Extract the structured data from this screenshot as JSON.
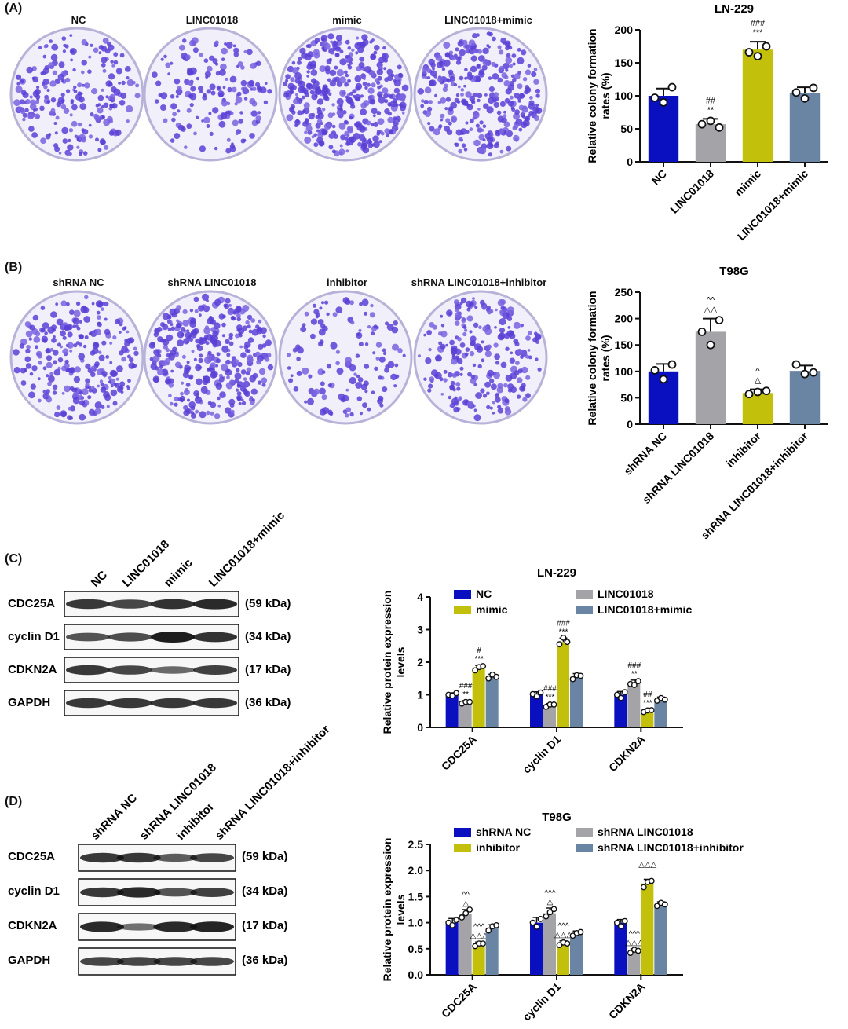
{
  "panels": {
    "A": {
      "label": "(A)",
      "dishes": [
        "NC",
        "LINC01018",
        "mimic",
        "LINC01018+mimic"
      ]
    },
    "B": {
      "label": "(B)",
      "dishes": [
        "shRNA NC",
        "shRNA LINC01018",
        "inhibitor",
        "shRNA LINC01018+inhibitor"
      ]
    },
    "C": {
      "label": "(C)",
      "lanes": [
        "NC",
        "LINC01018",
        "mimic",
        "LINC01018+mimic"
      ],
      "proteins": [
        "CDC25A",
        "cyclin D1",
        "CDKN2A",
        "GAPDH"
      ],
      "kda": [
        "(59 kDa)",
        "(34 kDa)",
        "(17 kDa)",
        "(36 kDa)"
      ]
    },
    "D": {
      "label": "(D)",
      "lanes": [
        "shRNA NC",
        "shRNA LINC01018",
        "inhibitor",
        "shRNA LINC01018+inhibitor"
      ],
      "proteins": [
        "CDC25A",
        "cyclin D1",
        "CDKN2A",
        "GAPDH"
      ],
      "kda": [
        "(59 kDa)",
        "(34 kDa)",
        "(17 kDa)",
        "(36 kDa)"
      ]
    }
  },
  "colors": {
    "blue": "#0a10c0",
    "grey": "#a3a3a8",
    "yellow": "#c2c00a",
    "slate": "#6a84a4"
  },
  "chart_data": [
    {
      "type": "bar",
      "title": "LN-229",
      "ylabel": "Relative colony formation rates (%)",
      "ylim": [
        0,
        200
      ],
      "yticks": [
        0,
        50,
        100,
        150,
        200
      ],
      "categories": [
        "NC",
        "LINC01018",
        "mimic",
        "LINC01018+mimic"
      ],
      "values": [
        100,
        57,
        170,
        104
      ],
      "errors": [
        11,
        8,
        12,
        9
      ],
      "points": [
        [
          97,
          90,
          113
        ],
        [
          57,
          62,
          52
        ],
        [
          166,
          160,
          175
        ],
        [
          105,
          96,
          112
        ]
      ],
      "annotations": [
        [
          "",
          ""
        ],
        [
          "##",
          "**"
        ],
        [
          "###",
          "***"
        ],
        [
          "",
          ""
        ]
      ]
    },
    {
      "type": "bar",
      "title": "T98G",
      "ylabel": "Relative colony formation rates (%)",
      "ylim": [
        0,
        250
      ],
      "yticks": [
        0,
        50,
        100,
        150,
        200,
        250
      ],
      "categories": [
        "shRNA NC",
        "shRNA LINC01018",
        "inhibitor",
        "shRNA LINC01018+inhibitor"
      ],
      "values": [
        100,
        175,
        59,
        101
      ],
      "errors": [
        14,
        25,
        7,
        10
      ],
      "points": [
        [
          102,
          85,
          113
        ],
        [
          175,
          150,
          197
        ],
        [
          57,
          61,
          63
        ],
        [
          113,
          95,
          98
        ]
      ],
      "annotations": [
        [
          "",
          ""
        ],
        [
          "^^",
          "△△"
        ],
        [
          "^",
          "△"
        ],
        [
          "",
          ""
        ]
      ]
    },
    {
      "type": "bar",
      "title": "LN-229",
      "ylabel": "Relative protein expression levels",
      "ylim": [
        0,
        4
      ],
      "yticks": [
        0,
        1,
        2,
        3,
        4
      ],
      "categories": [
        "CDC25A",
        "cyclin D1",
        "CDKN2A"
      ],
      "legend": [
        "NC",
        "LINC01018",
        "mimic",
        "LINC01018+mimic"
      ],
      "series": [
        {
          "name": "NC",
          "values": [
            1.0,
            1.0,
            1.0
          ],
          "errors": [
            0.06,
            0.09,
            0.1
          ],
          "points": [
            [
              1.0,
              0.97,
              1.05
            ],
            [
              1.02,
              0.95,
              1.07
            ],
            [
              1.0,
              0.9,
              1.08
            ]
          ]
        },
        {
          "name": "LINC01018",
          "values": [
            0.76,
            0.67,
            1.35
          ],
          "errors": [
            0.06,
            0.06,
            0.1
          ],
          "points": [
            [
              0.73,
              0.78,
              0.78
            ],
            [
              0.63,
              0.7,
              0.7
            ],
            [
              1.33,
              1.3,
              1.42
            ]
          ]
        },
        {
          "name": "mimic",
          "values": [
            1.8,
            2.62,
            0.5
          ],
          "errors": [
            0.1,
            0.12,
            0.05
          ],
          "points": [
            [
              1.75,
              1.85,
              1.88
            ],
            [
              2.55,
              2.75,
              2.62
            ],
            [
              0.47,
              0.52,
              0.53
            ]
          ]
        },
        {
          "name": "LINC01018+mimic",
          "values": [
            1.55,
            1.55,
            0.85
          ],
          "errors": [
            0.08,
            0.1,
            0.08
          ],
          "points": [
            [
              1.5,
              1.62,
              1.55
            ],
            [
              1.48,
              1.6,
              1.58
            ],
            [
              0.82,
              0.9,
              0.85
            ]
          ]
        }
      ],
      "annotations": [
        [
          [
            "",
            ""
          ],
          [
            "###",
            "**"
          ],
          [
            "#",
            "***"
          ],
          [
            "",
            ""
          ]
        ],
        [
          [
            "",
            ""
          ],
          [
            "###",
            "***"
          ],
          [
            "###",
            "***"
          ],
          [
            "",
            ""
          ]
        ],
        [
          [
            "",
            ""
          ],
          [
            "###",
            "**"
          ],
          [
            "##",
            "***"
          ],
          [
            "",
            ""
          ]
        ]
      ]
    },
    {
      "type": "bar",
      "title": "T98G",
      "ylabel": "Relative protein expression levels",
      "ylim": [
        0,
        2.5
      ],
      "yticks": [
        0.0,
        0.5,
        1.0,
        1.5,
        2.0,
        2.5
      ],
      "categories": [
        "CDC25A",
        "cyclin D1",
        "CDKN2A"
      ],
      "legend": [
        "shRNA NC",
        "shRNA LINC01018",
        "inhibitor",
        "shRNA LINC01018+inhibitor"
      ],
      "series": [
        {
          "name": "shRNA NC",
          "values": [
            1.0,
            1.0,
            1.0
          ],
          "errors": [
            0.08,
            0.1,
            0.06
          ],
          "points": [
            [
              1.0,
              0.95,
              1.05
            ],
            [
              1.0,
              0.92,
              1.07
            ],
            [
              1.0,
              0.93,
              1.03
            ]
          ]
        },
        {
          "name": "shRNA LINC01018",
          "values": [
            1.17,
            1.18,
            0.45
          ],
          "errors": [
            0.08,
            0.1,
            0.05
          ],
          "points": [
            [
              1.1,
              1.18,
              1.25
            ],
            [
              1.12,
              1.2,
              1.26
            ],
            [
              0.42,
              0.48,
              0.46
            ]
          ]
        },
        {
          "name": "inhibitor",
          "values": [
            0.58,
            0.6,
            1.75
          ],
          "errors": [
            0.05,
            0.05,
            0.08
          ],
          "points": [
            [
              0.55,
              0.6,
              0.6
            ],
            [
              0.57,
              0.62,
              0.6
            ],
            [
              1.68,
              1.78,
              1.8
            ]
          ]
        },
        {
          "name": "shRNA LINC01018+inhibitor",
          "values": [
            0.9,
            0.78,
            1.35
          ],
          "errors": [
            0.06,
            0.06,
            0.05
          ],
          "points": [
            [
              0.85,
              0.93,
              0.95
            ],
            [
              0.75,
              0.8,
              0.82
            ],
            [
              1.32,
              1.38,
              1.35
            ]
          ]
        }
      ],
      "annotations": [
        [
          [
            "",
            ""
          ],
          [
            "^^",
            "△"
          ],
          [
            "^^^",
            "△△△"
          ],
          [
            "",
            ""
          ]
        ],
        [
          [
            "",
            ""
          ],
          [
            "^^^",
            "△"
          ],
          [
            "^^^",
            "△△△"
          ],
          [
            "",
            ""
          ]
        ],
        [
          [
            "",
            ""
          ],
          [
            "^^^",
            "△△△"
          ],
          [
            "△△△",
            ""
          ],
          [
            "",
            ""
          ]
        ]
      ]
    }
  ]
}
